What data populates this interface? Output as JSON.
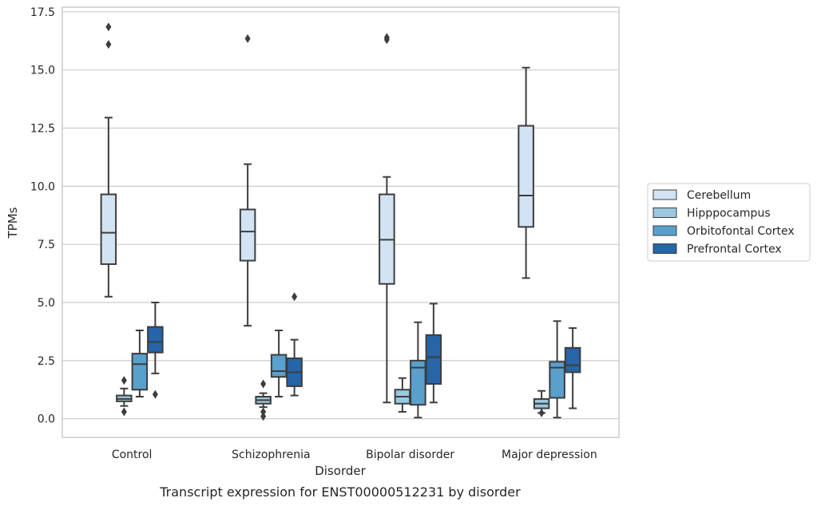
{
  "caption": "Transcript expression for ENST00000512231 by disorder",
  "chart_data": {
    "type": "box",
    "xlabel": "Disorder",
    "ylabel": "TPMs",
    "ylim": [
      -0.8,
      17.7
    ],
    "yticks": [
      "0.0",
      "2.5",
      "5.0",
      "7.5",
      "10.0",
      "12.5",
      "15.0",
      "17.5"
    ],
    "grid": "horizontal",
    "legend_position": "right",
    "categories": [
      "Control",
      "Schizophrenia",
      "Bipolar disorder",
      "Major depression"
    ],
    "series": [
      {
        "name": "Cerebellum",
        "color": "#d2e3f3",
        "boxes": [
          {
            "whislo": 5.25,
            "q1": 6.65,
            "med": 8.0,
            "q3": 9.65,
            "whishi": 12.95,
            "fliers": [
              16.1,
              16.85
            ]
          },
          {
            "whislo": 4.0,
            "q1": 6.8,
            "med": 8.05,
            "q3": 9.0,
            "whishi": 10.95,
            "fliers": [
              16.35
            ]
          },
          {
            "whislo": 0.7,
            "q1": 5.8,
            "med": 7.7,
            "q3": 9.65,
            "whishi": 10.4,
            "fliers": [
              16.3,
              16.4
            ]
          },
          {
            "whislo": 6.05,
            "q1": 8.25,
            "med": 9.6,
            "q3": 12.6,
            "whishi": 15.1,
            "fliers": []
          }
        ]
      },
      {
        "name": "Hipppocampus",
        "color": "#9ac8e0",
        "boxes": [
          {
            "whislo": 0.55,
            "q1": 0.75,
            "med": 0.85,
            "q3": 1.0,
            "whishi": 1.3,
            "fliers": [
              0.3,
              1.65
            ]
          },
          {
            "whislo": 0.5,
            "q1": 0.65,
            "med": 0.8,
            "q3": 0.95,
            "whishi": 1.1,
            "fliers": [
              0.1,
              0.3,
              1.5
            ]
          },
          {
            "whislo": 0.3,
            "q1": 0.65,
            "med": 0.95,
            "q3": 1.25,
            "whishi": 1.75,
            "fliers": []
          },
          {
            "whislo": 0.25,
            "q1": 0.45,
            "med": 0.65,
            "q3": 0.85,
            "whishi": 1.2,
            "fliers": [
              0.25
            ]
          }
        ]
      },
      {
        "name": "Orbitofontal Cortex",
        "color": "#5aa0cd",
        "boxes": [
          {
            "whislo": 0.95,
            "q1": 1.25,
            "med": 2.35,
            "q3": 2.8,
            "whishi": 3.8,
            "fliers": []
          },
          {
            "whislo": 0.95,
            "q1": 1.8,
            "med": 2.05,
            "q3": 2.75,
            "whishi": 3.8,
            "fliers": []
          },
          {
            "whislo": 0.05,
            "q1": 0.6,
            "med": 2.2,
            "q3": 2.5,
            "whishi": 4.15,
            "fliers": []
          },
          {
            "whislo": 0.05,
            "q1": 0.9,
            "med": 2.2,
            "q3": 2.45,
            "whishi": 4.2,
            "fliers": []
          }
        ]
      },
      {
        "name": "Prefrontal Cortex",
        "color": "#2565a8",
        "boxes": [
          {
            "whislo": 1.95,
            "q1": 2.85,
            "med": 3.3,
            "q3": 3.95,
            "whishi": 5.0,
            "fliers": [
              1.05
            ]
          },
          {
            "whislo": 1.0,
            "q1": 1.4,
            "med": 2.0,
            "q3": 2.6,
            "whishi": 3.4,
            "fliers": [
              5.25
            ]
          },
          {
            "whislo": 0.7,
            "q1": 1.5,
            "med": 2.65,
            "q3": 3.6,
            "whishi": 4.95,
            "fliers": []
          },
          {
            "whislo": 0.45,
            "q1": 2.0,
            "med": 2.3,
            "q3": 3.05,
            "whishi": 3.9,
            "fliers": []
          }
        ]
      }
    ]
  }
}
